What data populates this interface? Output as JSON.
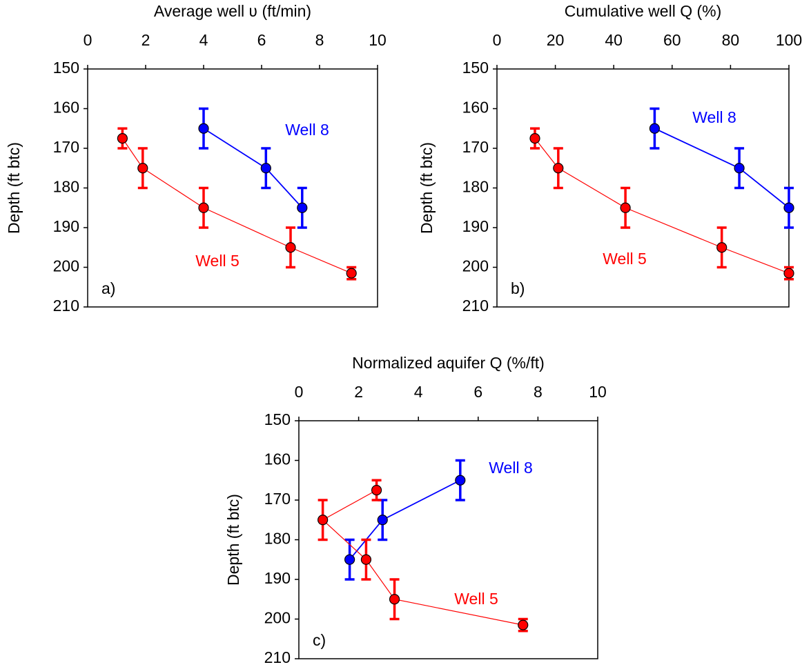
{
  "chart_data": [
    {
      "type": "line",
      "xlabel": "Average well ʋ (ft/min)",
      "ylabel": "Depth (ft btc)",
      "panel_label": "a)",
      "xlim": [
        0,
        10
      ],
      "xticks": [
        0,
        2,
        4,
        6,
        8,
        10
      ],
      "ylim": [
        210,
        150
      ],
      "yticks": [
        150,
        160,
        170,
        180,
        190,
        200,
        210
      ],
      "series": [
        {
          "name": "Well 8",
          "color": "#0000ff",
          "x": [
            4.0,
            6.15,
            7.4
          ],
          "values": [
            165,
            175,
            185
          ],
          "errors": [
            5,
            5,
            5
          ]
        },
        {
          "name": "Well 5",
          "color": "#ff0000",
          "x": [
            1.2,
            1.9,
            4.0,
            7.0,
            9.1
          ],
          "values": [
            167.5,
            175,
            185,
            195,
            201.5
          ],
          "errors": [
            2.5,
            5,
            5,
            5,
            1.5
          ]
        }
      ]
    },
    {
      "type": "line",
      "xlabel": "Cumulative well Q (%)",
      "ylabel": "Depth (ft btc)",
      "panel_label": "b)",
      "xlim": [
        0,
        100
      ],
      "xticks": [
        0,
        20,
        40,
        60,
        80,
        100
      ],
      "ylim": [
        210,
        150
      ],
      "yticks": [
        150,
        160,
        170,
        180,
        190,
        200,
        210
      ],
      "series": [
        {
          "name": "Well 8",
          "color": "#0000ff",
          "x": [
            54,
            83,
            100
          ],
          "values": [
            165,
            175,
            185
          ],
          "errors": [
            5,
            5,
            5
          ]
        },
        {
          "name": "Well 5",
          "color": "#ff0000",
          "x": [
            13,
            21,
            44,
            77,
            100
          ],
          "values": [
            167.5,
            175,
            185,
            195,
            201.5
          ],
          "errors": [
            2.5,
            5,
            5,
            5,
            1.5
          ]
        }
      ]
    },
    {
      "type": "line",
      "xlabel": "Normalized aquifer Q (%/ft)",
      "ylabel": "Depth (ft btc)",
      "panel_label": "c)",
      "xlim": [
        0,
        10
      ],
      "xticks": [
        0,
        2,
        4,
        6,
        8,
        10
      ],
      "ylim": [
        210,
        150
      ],
      "yticks": [
        150,
        160,
        170,
        180,
        190,
        200,
        210
      ],
      "series": [
        {
          "name": "Well 8",
          "color": "#0000ff",
          "x": [
            5.4,
            2.8,
            1.7
          ],
          "values": [
            165,
            175,
            185
          ],
          "errors": [
            5,
            5,
            5
          ]
        },
        {
          "name": "Well 5",
          "color": "#ff0000",
          "x": [
            2.6,
            0.8,
            2.25,
            3.2,
            7.5
          ],
          "values": [
            167.5,
            175,
            185,
            195,
            201.5
          ],
          "errors": [
            2.5,
            5,
            5,
            5,
            1.5
          ]
        }
      ]
    }
  ]
}
